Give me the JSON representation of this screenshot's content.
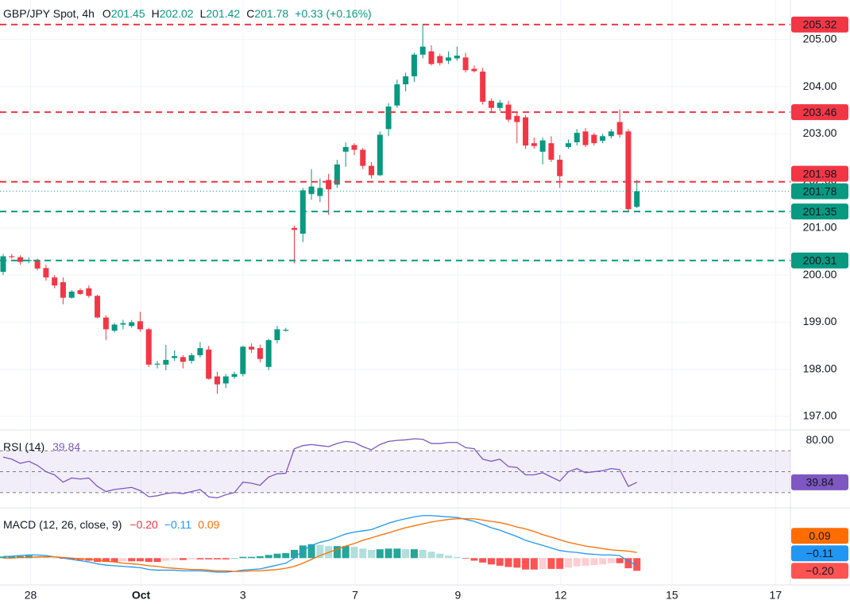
{
  "header": {
    "symbol": "GBP/JPY Spot, 4h",
    "ohlc": [
      {
        "label": "O",
        "value": 201.45
      },
      {
        "label": "H",
        "value": 202.02
      },
      {
        "label": "L",
        "value": 201.42
      },
      {
        "label": "C",
        "value": 201.78
      }
    ],
    "change": "+0.33 (+0.16%)"
  },
  "chart_data": [
    {
      "type": "candlestick",
      "up_color": "#089981",
      "down_color": "#f23645",
      "open": [
        200.07,
        200.4,
        200.38,
        200.3,
        200.32,
        200.15,
        199.95,
        199.85,
        199.52,
        199.68,
        199.72,
        199.56,
        199.1,
        198.82,
        198.95,
        198.92,
        199.02,
        198.85,
        198.1,
        198.1,
        198.24,
        198.26,
        198.18,
        198.3,
        198.42,
        197.85,
        197.7,
        197.84,
        197.9,
        198.48,
        198.45,
        198.05,
        198.62,
        198.82,
        201.0,
        200.88,
        201.72,
        201.68,
        202.02,
        201.92,
        202.62,
        202.76,
        202.66,
        202.32,
        202.12,
        203.1,
        203.6,
        204.05,
        204.22,
        204.68,
        204.75,
        204.65,
        204.55,
        204.6,
        204.62,
        204.38,
        204.32,
        203.7,
        203.55,
        203.62,
        203.38,
        203.35,
        202.8,
        202.62,
        202.8,
        202.45,
        202.72,
        202.82,
        203.05,
        202.98,
        202.85,
        202.95,
        203.25,
        203.05,
        201.45
      ],
      "high": [
        200.45,
        200.45,
        200.42,
        200.38,
        200.35,
        200.22,
        200.0,
        199.95,
        199.68,
        199.72,
        199.78,
        199.58,
        199.15,
        198.98,
        199.05,
        199.05,
        199.22,
        198.88,
        198.18,
        198.52,
        198.4,
        198.3,
        198.35,
        198.58,
        198.5,
        197.95,
        197.9,
        197.95,
        198.5,
        198.55,
        198.52,
        198.65,
        198.92,
        198.88,
        201.05,
        201.85,
        202.25,
        202.05,
        202.15,
        202.45,
        202.82,
        202.8,
        202.7,
        202.4,
        203.05,
        203.65,
        204.15,
        204.3,
        204.72,
        205.32,
        204.88,
        204.7,
        204.75,
        204.85,
        204.72,
        204.45,
        204.4,
        203.75,
        203.72,
        203.7,
        203.45,
        203.4,
        202.92,
        202.92,
        202.95,
        202.55,
        202.88,
        203.1,
        203.12,
        203.02,
        203.0,
        203.1,
        203.52,
        203.1,
        202.02
      ],
      "low": [
        200.0,
        200.35,
        200.22,
        200.25,
        200.1,
        199.88,
        199.72,
        199.38,
        199.5,
        199.58,
        199.52,
        199.08,
        198.62,
        198.78,
        198.85,
        198.88,
        198.8,
        198.05,
        198.02,
        197.98,
        198.18,
        198.02,
        198.12,
        198.25,
        197.78,
        197.48,
        197.6,
        197.8,
        197.85,
        198.35,
        198.15,
        197.98,
        198.55,
        198.8,
        200.25,
        200.7,
        201.6,
        201.55,
        201.28,
        201.85,
        202.3,
        202.55,
        202.25,
        202.05,
        202.1,
        202.95,
        203.55,
        203.9,
        204.1,
        204.6,
        204.45,
        204.45,
        204.48,
        204.55,
        204.3,
        204.3,
        203.62,
        203.45,
        203.48,
        203.25,
        202.8,
        202.68,
        202.68,
        202.35,
        202.4,
        201.85,
        202.68,
        202.75,
        202.72,
        202.75,
        202.8,
        202.9,
        202.92,
        201.35,
        201.42
      ],
      "close": [
        200.4,
        200.38,
        200.28,
        200.32,
        200.14,
        199.95,
        199.78,
        199.52,
        199.65,
        199.6,
        199.56,
        199.1,
        198.85,
        198.95,
        198.98,
        199.0,
        198.85,
        198.1,
        198.12,
        198.2,
        198.28,
        198.16,
        198.3,
        198.45,
        197.8,
        197.68,
        197.85,
        197.9,
        198.48,
        198.42,
        198.22,
        198.62,
        198.85,
        198.84,
        200.96,
        201.8,
        201.88,
        201.85,
        201.82,
        202.35,
        202.72,
        202.66,
        202.32,
        202.12,
        202.98,
        203.58,
        204.05,
        204.22,
        204.68,
        204.85,
        204.48,
        204.5,
        204.62,
        204.66,
        204.35,
        204.33,
        203.68,
        203.55,
        203.66,
        203.3,
        203.25,
        202.75,
        202.74,
        202.86,
        202.45,
        202.1,
        202.8,
        203.02,
        202.76,
        202.8,
        202.95,
        203.05,
        202.98,
        201.4,
        201.78
      ],
      "xlim": [
        -0.37,
        91.93
      ],
      "xticks": [
        {
          "value": 3.2,
          "label": "28"
        },
        {
          "value": 16.1,
          "label": "Oct"
        },
        {
          "value": 28,
          "label": "3"
        },
        {
          "value": 41.1,
          "label": "7"
        },
        {
          "value": 53.1,
          "label": "9"
        },
        {
          "value": 65.1,
          "label": "12"
        },
        {
          "value": 78.1,
          "label": "15"
        },
        {
          "value": 90.2,
          "label": "17"
        }
      ],
      "ylim": [
        196.73,
        205.84
      ],
      "yticks": [
        {
          "value": 197,
          "label": "197.00"
        },
        {
          "value": 198,
          "label": "198.00"
        },
        {
          "value": 199,
          "label": "199.00"
        },
        {
          "value": 200,
          "label": "200.00"
        },
        {
          "value": 201,
          "label": "201.00"
        },
        {
          "value": 202,
          "label": "202.00"
        },
        {
          "value": 203,
          "label": "203.00"
        },
        {
          "value": 204,
          "label": "204.00"
        },
        {
          "value": 205,
          "label": "205.00"
        }
      ],
      "grid": true,
      "levels": [
        {
          "value": 205.32,
          "color": "#f23645",
          "style": "dashed"
        },
        {
          "value": 203.46,
          "color": "#f23645",
          "style": "dashed"
        },
        {
          "value": 201.98,
          "color": "#f23645",
          "style": "dashed"
        },
        {
          "value": 201.35,
          "color": "#089981",
          "style": "dashed"
        },
        {
          "value": 200.31,
          "color": "#089981",
          "style": "dashed"
        }
      ],
      "last_price": {
        "value": 201.78,
        "color": "#089981",
        "style": "dotted"
      }
    },
    {
      "type": "line",
      "title": "RSI (14)",
      "color": "#7e57c2",
      "values": [
        64,
        62,
        58,
        60,
        56,
        50,
        47,
        40,
        44,
        43,
        44,
        36,
        31,
        33,
        34,
        35,
        32,
        26,
        27,
        29,
        30,
        29,
        31,
        33,
        26,
        25,
        28,
        30,
        40,
        39,
        37,
        45,
        48,
        48.5,
        72,
        75,
        76,
        75,
        74,
        77,
        79,
        78,
        74,
        71,
        76,
        79,
        80,
        80.5,
        81.5,
        81,
        77,
        77,
        78,
        78,
        73,
        72,
        62,
        60,
        62,
        55,
        54,
        47,
        47,
        49,
        45,
        41,
        50,
        53,
        49,
        50,
        51,
        53,
        52,
        36,
        39.84
      ],
      "ylim": [
        16.2,
        89.2
      ],
      "yticks": [
        {
          "value": 80,
          "label": "80.00"
        }
      ],
      "band": [
        30,
        70
      ],
      "guides": [
        70,
        50,
        30
      ]
    },
    {
      "type": "macd",
      "title": "MACD (12, 26, close, 9)",
      "series": [
        {
          "color": "#2196f3",
          "last_label": "−0.11",
          "values": [
            0.025,
            0.03,
            0.04,
            0.05,
            0.05,
            0.04,
            0.02,
            0,
            -0.02,
            -0.04,
            -0.06,
            -0.09,
            -0.11,
            -0.12,
            -0.13,
            -0.14,
            -0.15,
            -0.18,
            -0.19,
            -0.19,
            -0.19,
            -0.2,
            -0.2,
            -0.2,
            -0.21,
            -0.22,
            -0.22,
            -0.21,
            -0.19,
            -0.18,
            -0.17,
            -0.14,
            -0.11,
            -0.08,
            0,
            0.12,
            0.2,
            0.25,
            0.28,
            0.33,
            0.38,
            0.41,
            0.43,
            0.45,
            0.5,
            0.55,
            0.59,
            0.62,
            0.65,
            0.67,
            0.67,
            0.66,
            0.65,
            0.64,
            0.61,
            0.58,
            0.53,
            0.48,
            0.44,
            0.39,
            0.34,
            0.28,
            0.24,
            0.2,
            0.16,
            0.12,
            0.1,
            0.09,
            0.07,
            0.06,
            0.05,
            0.05,
            0.04,
            -0.05,
            -0.11
          ]
        },
        {
          "color": "#ff6d00",
          "last_label": "0.09",
          "values": [
            0,
            0,
            0.01,
            0.01,
            0.02,
            0.02,
            0.02,
            0.01,
            0,
            -0.01,
            -0.02,
            -0.03,
            -0.05,
            -0.06,
            -0.08,
            -0.09,
            -0.1,
            -0.12,
            -0.13,
            -0.15,
            -0.16,
            -0.17,
            -0.18,
            -0.18,
            -0.19,
            -0.2,
            -0.2,
            -0.21,
            -0.21,
            -0.2,
            -0.2,
            -0.19,
            -0.18,
            -0.16,
            -0.13,
            -0.08,
            -0.02,
            0.04,
            0.09,
            0.14,
            0.19,
            0.23,
            0.28,
            0.32,
            0.36,
            0.4,
            0.44,
            0.48,
            0.51,
            0.54,
            0.57,
            0.59,
            0.61,
            0.62,
            0.62,
            0.62,
            0.6,
            0.58,
            0.56,
            0.53,
            0.49,
            0.46,
            0.42,
            0.37,
            0.33,
            0.29,
            0.25,
            0.22,
            0.19,
            0.17,
            0.15,
            0.13,
            0.12,
            0.11,
            0.09
          ]
        }
      ],
      "histogram": {
        "last_label": "−0.20",
        "colors": {
          "up_rising": "#26a69a",
          "up_falling": "#b2dfdb",
          "down_falling": "#ff5252",
          "down_rising": "#ffcdd2"
        },
        "values": [
          0.025,
          0.03,
          0.03,
          0.04,
          0.03,
          0.02,
          0,
          -0.01,
          -0.02,
          -0.03,
          -0.04,
          -0.06,
          -0.06,
          -0.06,
          -0.05,
          -0.05,
          -0.05,
          -0.06,
          -0.06,
          -0.04,
          -0.03,
          -0.03,
          -0.02,
          -0.02,
          -0.02,
          -0.02,
          -0.02,
          0,
          0.02,
          0.02,
          0.03,
          0.05,
          0.07,
          0.08,
          0.13,
          0.2,
          0.22,
          0.21,
          0.19,
          0.19,
          0.19,
          0.18,
          0.15,
          0.13,
          0.14,
          0.15,
          0.15,
          0.14,
          0.14,
          0.13,
          0.1,
          0.07,
          0.04,
          0.02,
          -0.01,
          -0.04,
          -0.07,
          -0.1,
          -0.12,
          -0.14,
          -0.15,
          -0.18,
          -0.18,
          -0.17,
          -0.17,
          -0.17,
          -0.15,
          -0.13,
          -0.12,
          -0.11,
          -0.1,
          -0.08,
          -0.08,
          -0.16,
          -0.2
        ]
      },
      "ylim": [
        -0.41,
        0.78
      ]
    }
  ]
}
